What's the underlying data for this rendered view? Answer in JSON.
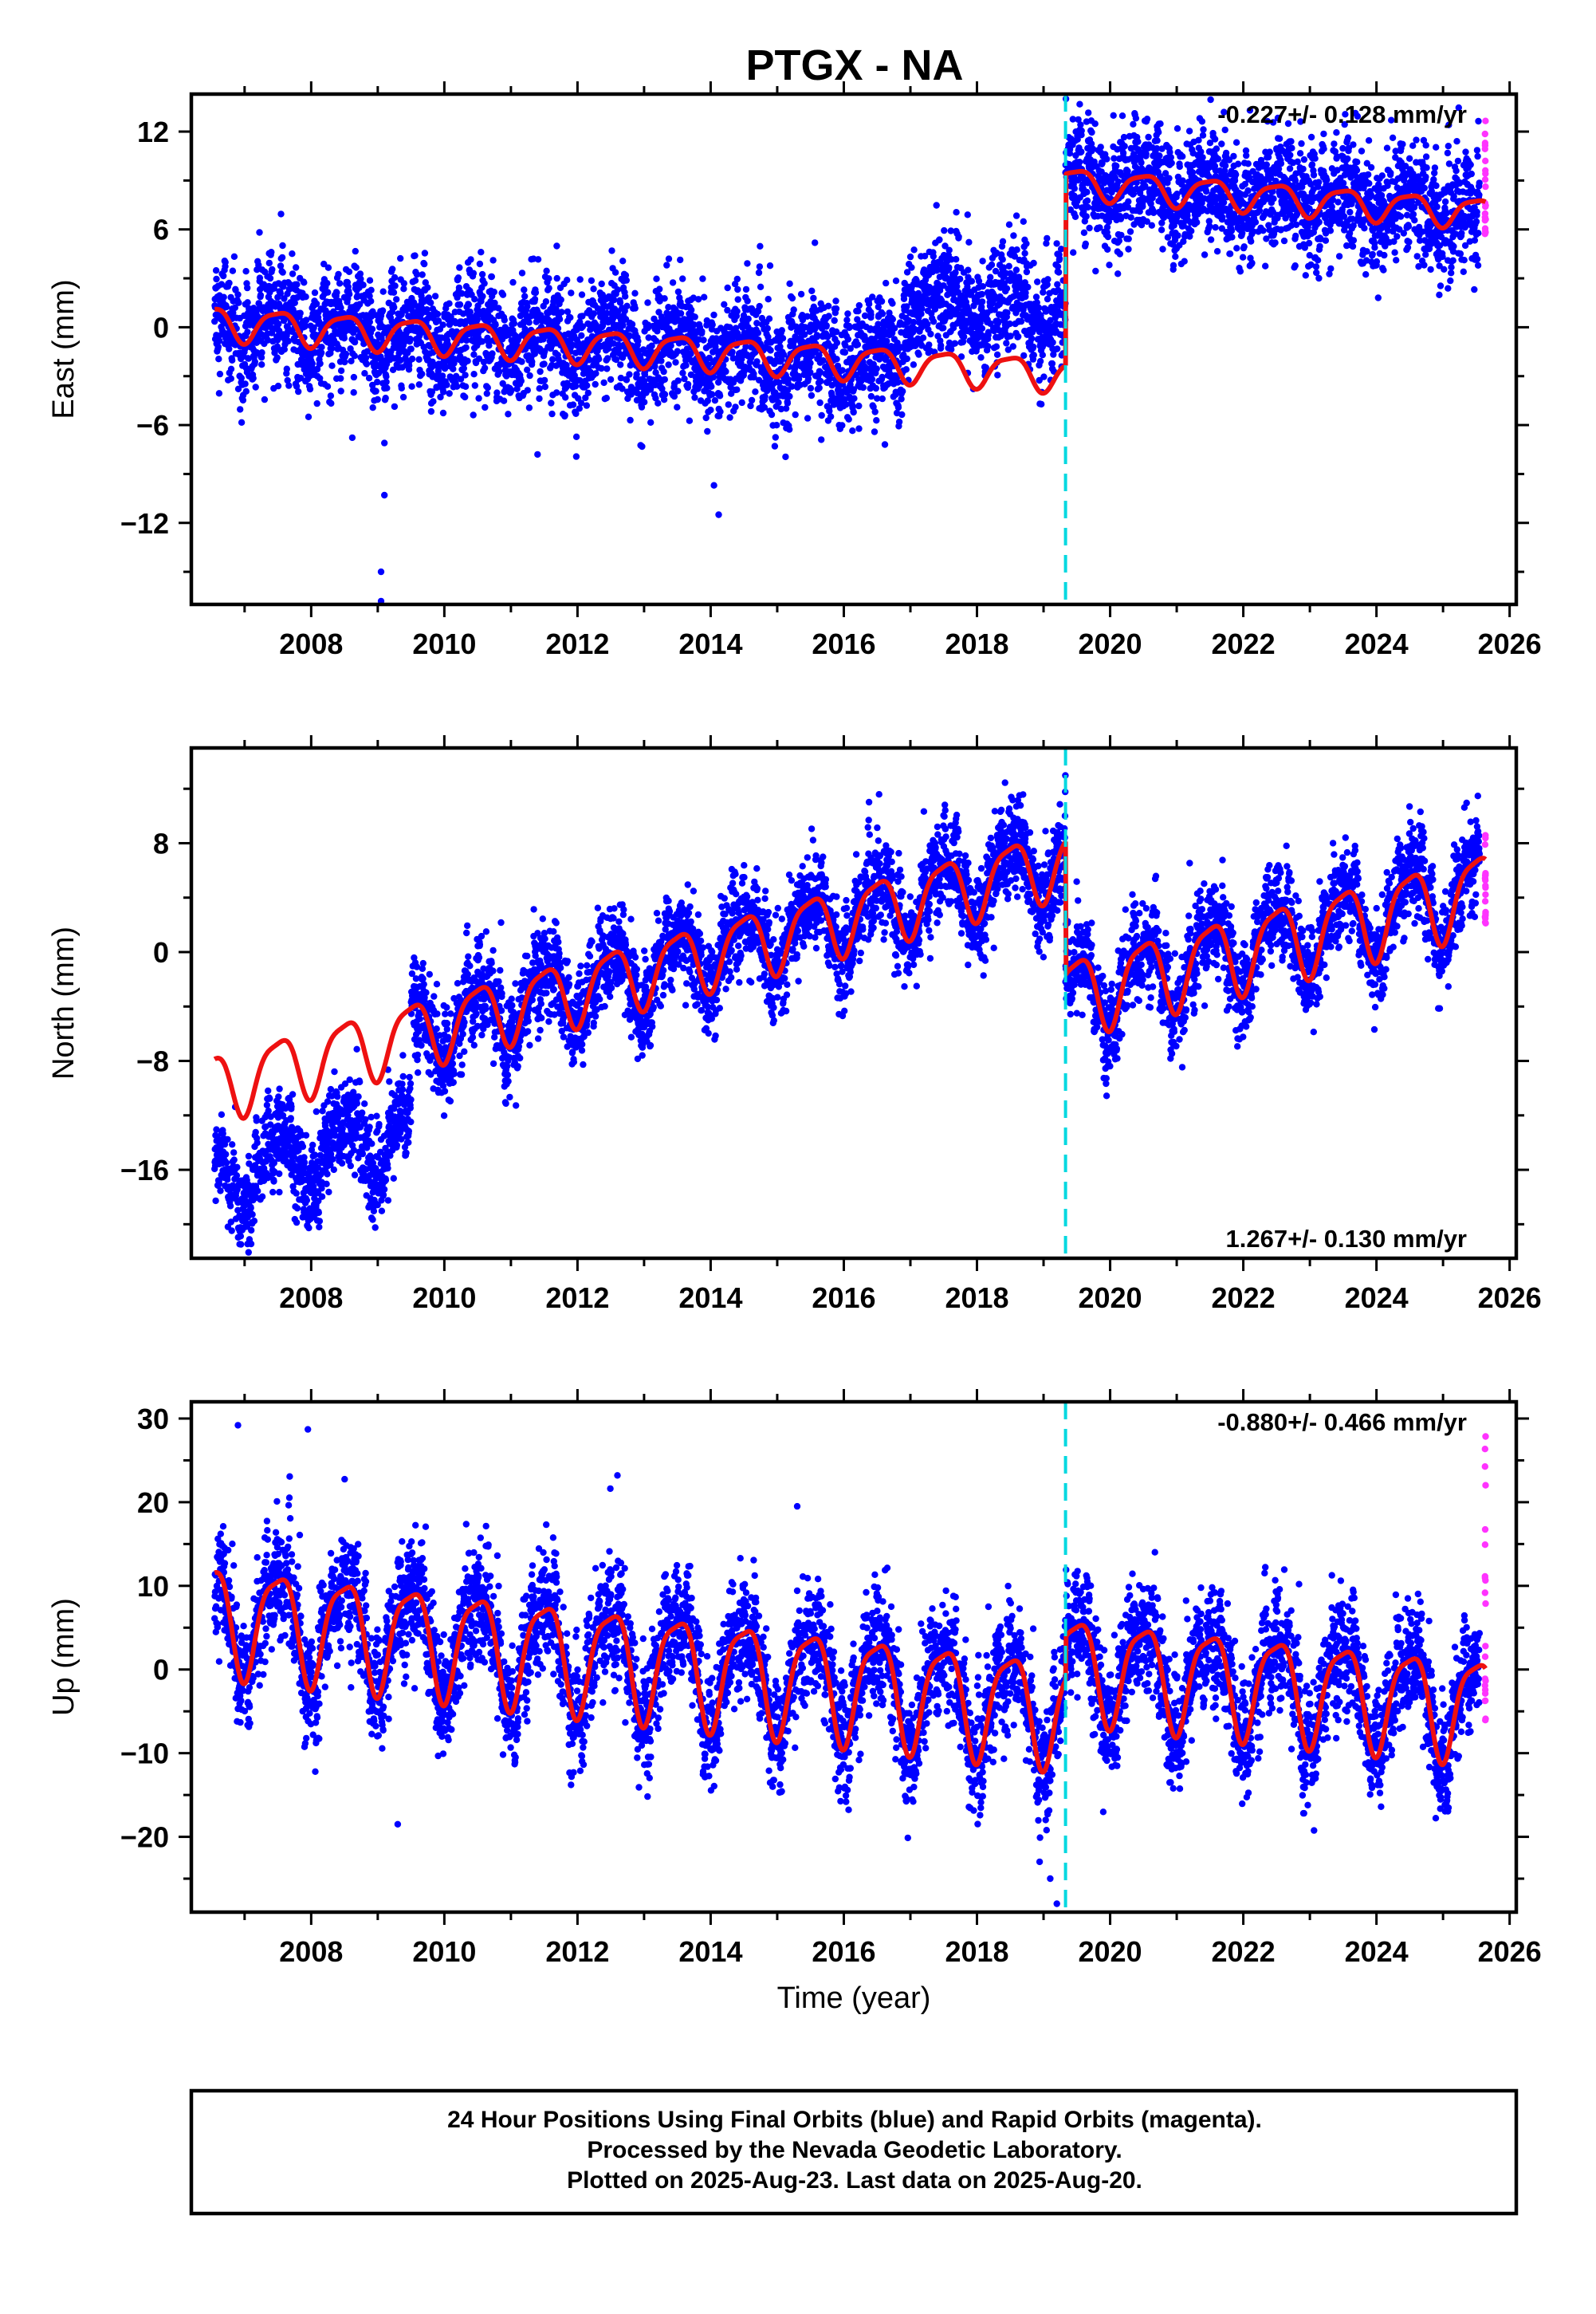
{
  "title": "PTGX - NA",
  "footer": {
    "line1": "24 Hour Positions Using Final Orbits (blue) and Rapid Orbits (magenta).",
    "line2": "Processed by the Nevada Geodetic Laboratory.",
    "line3": "Plotted on 2025-Aug-23. Last data on 2025-Aug-20."
  },
  "colors": {
    "final_orbits": "#0000ff",
    "rapid_orbits": "#ff33ff",
    "model_fit": "#ee1111",
    "event_line": "#00d8e0"
  },
  "chart_data": [
    {
      "type": "scatter",
      "ylabel": "East (mm)",
      "xlabel": "",
      "xlim": [
        2006.2,
        2026.1
      ],
      "ylim": [
        -17,
        14.3
      ],
      "x_ticks": [
        2008,
        2010,
        2012,
        2014,
        2016,
        2018,
        2020,
        2022,
        2024,
        2026
      ],
      "x_tick_labels": [
        "2008",
        "2010",
        "2012",
        "2014",
        "2016",
        "2018",
        "2020",
        "2022",
        "2024",
        "2026"
      ],
      "y_ticks": [
        -12,
        -6,
        0,
        6,
        12
      ],
      "y_tick_labels": [
        "−12",
        "−6",
        "0",
        "6",
        "12"
      ],
      "rate_text": "-0.227+/- 0.128 mm/yr",
      "rate_position": "top-right",
      "event_year": 2019.33,
      "data_start": 2006.55,
      "data_end": 2025.55,
      "rapid_start": 2025.55,
      "rapid_end": 2025.64,
      "model": {
        "segments": [
          {
            "start": 2006.55,
            "end": 2019.33,
            "offset_at_start": 0.3,
            "rate": -0.25,
            "annual_amp": 1.0
          },
          {
            "start": 2019.33,
            "end": 2025.64,
            "offset_at_start": 8.9,
            "rate": -0.3,
            "annual_amp": 0.9
          }
        ]
      },
      "observed_shift": [
        {
          "start": 2016.9,
          "end": 2019.33,
          "shift": 4.0
        }
      ],
      "scatter_sigma": 1.6,
      "outliers": [
        {
          "x": 2009.05,
          "y": -15.0
        },
        {
          "x": 2009.05,
          "y": -16.8
        },
        {
          "x": 2009.1,
          "y": -10.3
        },
        {
          "x": 2009.1,
          "y": -7.1
        },
        {
          "x": 2014.05,
          "y": -9.7
        },
        {
          "x": 2014.12,
          "y": -11.5
        },
        {
          "x": 2011.4,
          "y": -7.8
        },
        {
          "x": 2022.1,
          "y": 13.3
        }
      ],
      "rapid_range": [
        5.7,
        12.9
      ]
    },
    {
      "type": "scatter",
      "ylabel": "North (mm)",
      "xlabel": "",
      "xlim": [
        2006.2,
        2026.1
      ],
      "ylim": [
        -22.5,
        15
      ],
      "x_ticks": [
        2008,
        2010,
        2012,
        2014,
        2016,
        2018,
        2020,
        2022,
        2024,
        2026
      ],
      "x_tick_labels": [
        "2008",
        "2010",
        "2012",
        "2014",
        "2016",
        "2018",
        "2020",
        "2022",
        "2024",
        "2026"
      ],
      "y_ticks": [
        -16,
        -8,
        0,
        8
      ],
      "y_tick_labels": [
        "−16",
        "−8",
        "0",
        "8"
      ],
      "rate_text": "1.267+/- 0.130 mm/yr",
      "rate_position": "bottom-right",
      "event_year": 2019.33,
      "data_start": 2006.55,
      "data_end": 2025.55,
      "rapid_start": 2025.55,
      "rapid_end": 2025.64,
      "model": {
        "segments": [
          {
            "start": 2006.55,
            "end": 2019.33,
            "offset_at_start": -9.8,
            "rate": 1.3,
            "annual_amp": 2.4
          },
          {
            "start": 2019.33,
            "end": 2025.64,
            "offset_at_start": -3.2,
            "rate": 1.25,
            "annual_amp": 2.8
          }
        ]
      },
      "observed_shift": [
        {
          "start": 2006.55,
          "end": 2009.5,
          "shift": -7.0
        }
      ],
      "scatter_sigma": 1.6,
      "outliers": [],
      "rapid_range": [
        2.0,
        9.0
      ]
    },
    {
      "type": "scatter",
      "ylabel": "Up (mm)",
      "xlabel": "Time (year)",
      "xlim": [
        2006.2,
        2026.1
      ],
      "ylim": [
        -29,
        32
      ],
      "x_ticks": [
        2008,
        2010,
        2012,
        2014,
        2016,
        2018,
        2020,
        2022,
        2024,
        2026
      ],
      "x_tick_labels": [
        "2008",
        "2010",
        "2012",
        "2014",
        "2016",
        "2018",
        "2020",
        "2022",
        "2024",
        "2026"
      ],
      "y_ticks": [
        -20,
        -10,
        0,
        10,
        20,
        30
      ],
      "y_tick_labels": [
        "−20",
        "−10",
        "0",
        "10",
        "20",
        "30"
      ],
      "rate_text": "-0.880+/- 0.466 mm/yr",
      "rate_position": "top-right",
      "event_year": 2019.33,
      "data_start": 2006.55,
      "data_end": 2025.55,
      "rapid_start": 2025.55,
      "rapid_end": 2025.64,
      "model": {
        "segments": [
          {
            "start": 2006.55,
            "end": 2019.33,
            "offset_at_start": 6.5,
            "rate": -0.88,
            "annual_amp": 6.3
          },
          {
            "start": 2019.33,
            "end": 2025.64,
            "offset_at_start": 0.6,
            "rate": -0.8,
            "annual_amp": 6.0
          }
        ]
      },
      "observed_shift": [],
      "scatter_sigma": 3.2,
      "outliers": [
        {
          "x": 2006.9,
          "y": 29.2
        },
        {
          "x": 2007.95,
          "y": 28.7
        },
        {
          "x": 2009.3,
          "y": -18.5
        },
        {
          "x": 2019.2,
          "y": -28.0
        },
        {
          "x": 2019.1,
          "y": -25.0
        },
        {
          "x": 2015.3,
          "y": 19.5
        },
        {
          "x": 2012.6,
          "y": 23.2
        }
      ],
      "rapid_range": [
        -8.0,
        31.0
      ]
    }
  ]
}
